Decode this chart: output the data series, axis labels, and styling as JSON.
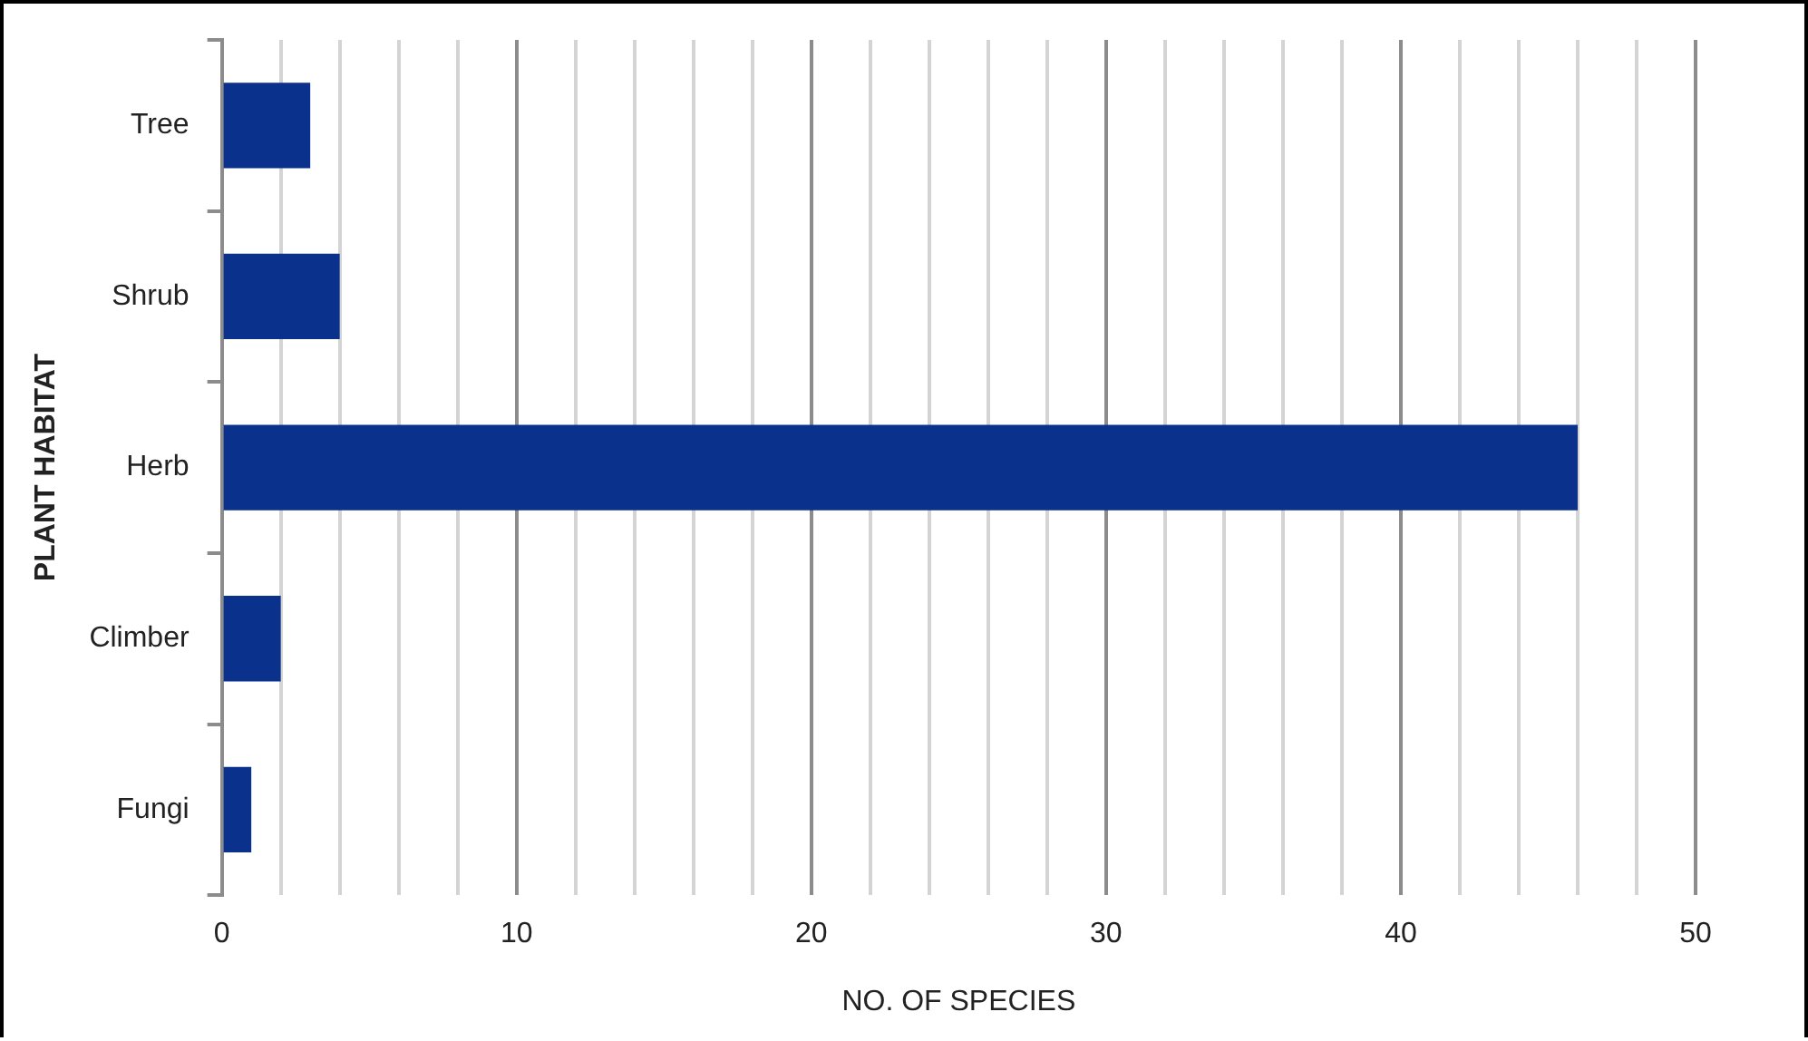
{
  "chart_data": {
    "type": "bar",
    "orientation": "horizontal",
    "xlabel": "NO. OF SPECIES",
    "ylabel": "PLANT HABITAT",
    "categories": [
      "Tree",
      "Shrub",
      "Herb",
      "Climber",
      "Fungi"
    ],
    "values": [
      3,
      4,
      46,
      2,
      1
    ],
    "color": "#0a318c",
    "xlim": [
      0,
      50
    ],
    "xticks": [
      0,
      {
        "value": 2,
        "label": null
      },
      {
        "value": 4,
        "label": null
      },
      {
        "value": 6,
        "label": null
      },
      {
        "value": 8,
        "label": null
      },
      10,
      {
        "value": 12,
        "label": null
      },
      {
        "value": 14,
        "label": null
      },
      {
        "value": 16,
        "label": null
      },
      {
        "value": 18,
        "label": null
      },
      20,
      {
        "value": 22,
        "label": null
      },
      {
        "value": 24,
        "label": null
      },
      {
        "value": 26,
        "label": null
      },
      {
        "value": 28,
        "label": null
      },
      30,
      {
        "value": 32,
        "label": null
      },
      {
        "value": 34,
        "label": null
      },
      {
        "value": 36,
        "label": null
      },
      {
        "value": 38,
        "label": null
      },
      40,
      {
        "value": 42,
        "label": null
      },
      {
        "value": 44,
        "label": null
      },
      {
        "value": 46,
        "label": null
      },
      {
        "value": 48,
        "label": null
      },
      50
    ],
    "grid": "x",
    "legend": false
  }
}
